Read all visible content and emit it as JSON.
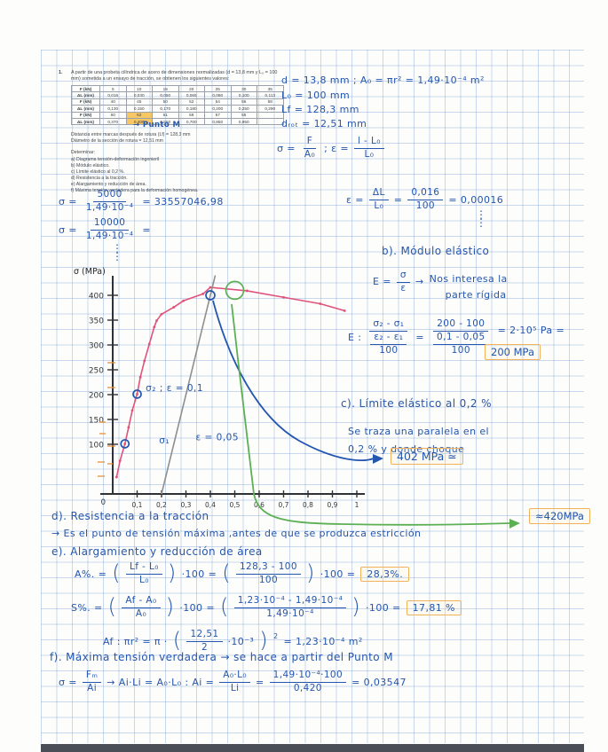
{
  "colors": {
    "ink_blue": "#2456ae",
    "curve_red": "#e0527a",
    "curve_green": "#5cb054",
    "offset_grey": "#8f8f8f",
    "highlight_orange": "#f2b25c",
    "table_highlight": "#f7c766"
  },
  "problem": {
    "number": "1.",
    "statement_l1": "A partir de una probeta cilíndrica de acero de dimensiones normalizadas (d = 13,8 mm y L₀ = 100",
    "statement_l2": "mm) sometida a un ensayo de tracción, se obtienen los siguientes valores:",
    "table": {
      "rows": [
        {
          "label": "F (kN)",
          "values": [
            "5",
            "10",
            "15",
            "20",
            "25",
            "30",
            "35"
          ]
        },
        {
          "label": "ΔL (mm)",
          "values": [
            "0,016",
            "0,030",
            "0,050",
            "0,065",
            "0,080",
            "0,100",
            "0,113"
          ]
        },
        {
          "label": "F (kN)",
          "values": [
            "40",
            "45",
            "50",
            "52",
            "54",
            "56",
            "58"
          ]
        },
        {
          "label": "ΔL (mm)",
          "values": [
            "0,130",
            "0,150",
            "0,170",
            "0,180",
            "0,200",
            "0,250",
            "0,290"
          ]
        },
        {
          "label": "F (kN)",
          "values": [
            "60",
            "62",
            "61",
            "59",
            "57",
            "55",
            ""
          ]
        },
        {
          "label": "ΔL (mm)",
          "values": [
            "0,370",
            "0,400",
            "0,550",
            "0,700",
            "0,850",
            "0,950",
            ""
          ]
        }
      ],
      "highlight_cells": [
        [
          4,
          1
        ],
        [
          5,
          1
        ]
      ],
      "highlight_note": "→ Punto  M"
    },
    "after_table_l1": "Distancia entre marcas después de rotura (Lf) = 128,3 mm",
    "after_table_l2": "Diámetro de la sección de rotura = 12,51 mm",
    "determine_title": "Determinar:",
    "determine_items": [
      "a)  Diagrama tensión-deformación ingenieril",
      "b)  Módulo elástico.",
      "c)  Límite elástico al 0,2 %.",
      "d)  Resistencia a la tracción.",
      "e)  Alargamiento y reducción de área.",
      "f)  Máxima tensión verdadera para la deformación homogénea."
    ]
  },
  "notes_top_right": {
    "line1": "d = 13,8 mm    ;   A₀ = πr² = 1,49·10⁻⁴ m²",
    "line2": "L₀ = 100 mm",
    "line3": "Lf = 128,3 mm",
    "line4": "dᵣₒₜ = 12,51 mm",
    "sigma_def": {
      "lhs": "σ =",
      "num": "F",
      "den": "A₀"
    },
    "eps_def": {
      "lhs": ";    ε =",
      "num": "l - L₀",
      "den": "L₀"
    }
  },
  "calcs": {
    "sigma1": {
      "lhs": "σ  =",
      "num": "5000",
      "den": "1,49·10⁻⁴",
      "rhs": "= 33557046,98"
    },
    "sigma2": {
      "lhs": "σ  =",
      "num": "10000",
      "den": "1,49·10⁻⁴",
      "rhs": "="
    },
    "dots": "⋮",
    "eps": {
      "lhs": "ε =",
      "f1n": "ΔL",
      "f1d": "L₀",
      "eq1": "=",
      "f2n": "0,016",
      "f2d": "100",
      "rhs": "= 0,00016"
    }
  },
  "section_b": {
    "title": "b). Módulo elástico",
    "e_def": {
      "lhs": "E =",
      "num": "σ",
      "den": "ε",
      "arrow": "→",
      "note1": "Nos interesa la",
      "note2": "parte rígida"
    },
    "e_calc": {
      "lhs": "E :",
      "f1n": "σ₂ - σ₁",
      "f1dn": "ε₂ - ε₁",
      "f1dd": "100",
      "eq1": "=",
      "f2n": "200 - 100",
      "f2dn": "0,1 - 0,05",
      "f2dd": "100",
      "rhs": "= 2·10⁵ Pa   =",
      "boxed": "200 MPa"
    }
  },
  "section_c": {
    "title": "c). Límite  elástico   al   0,2 %",
    "body1": "Se  traza  una  paralela  en  el",
    "body2": "0,2 %    y  donde  choque",
    "result": "402 MPa  ≃"
  },
  "section_d": {
    "title": "d). Resistencia   a   la   tracción",
    "result": "≈420MPa",
    "body": "→ Es  el  punto  de  tensión  máxima ,antes  de  que  se  produzca  estricción"
  },
  "section_e": {
    "title": "e). Alargamiento   y   reducción   de   área",
    "a_line": {
      "lhs": "A%. =",
      "f1n": "Lf - L₀",
      "f1d": "L₀",
      "m1": "·100 =",
      "f2n": "128,3 - 100",
      "f2d": "100",
      "m2": "·100 =",
      "boxed": "28,3%."
    },
    "s_line": {
      "lhs": "S%.  =",
      "f1n": "Af - A₀",
      "f1d": "A₀",
      "m1": "·100 =",
      "f2n": "1,23·10⁻⁴ - 1,49·10⁻⁴",
      "f2d": "1,49·10⁻⁴",
      "m2": "·100 =",
      "boxed": "17,81 %"
    },
    "af_line": {
      "lhs": "Af : πr²  =  π ·",
      "pn": "12,51",
      "pd": "2",
      "post": "·10⁻³",
      "sup": "2",
      "rhs": "= 1,23·10⁻⁴ m²"
    }
  },
  "section_f": {
    "title": "f). Máxima  tensión  verdadera   →   se  hace    a   partir  del   Punto M",
    "calc": {
      "lhs": "σ =",
      "f1n": "Fₘ",
      "f1d": "Ai",
      "mid": "→   Ai·Li = A₀·L₀   :   Ai =",
      "f2n": "A₀·L₀",
      "f2d": "Li",
      "eq": "=",
      "f3n": "1,49·10⁻⁴·100",
      "f3d": "0,420",
      "rhs": "= 0,03547"
    }
  },
  "chart_data": {
    "type": "line",
    "title": "",
    "ylabel": "σ (MPa)",
    "xlabel": "",
    "xlim": [
      0,
      1.05
    ],
    "ylim": [
      0,
      450
    ],
    "grid": true,
    "x_ticks": [
      0.1,
      0.2,
      0.3,
      0.4,
      0.5,
      0.6,
      0.7,
      0.8,
      0.9,
      1
    ],
    "x_tick_labels": [
      "0,1",
      "0,2",
      "0,3",
      "0,4",
      "0,5",
      "0,6",
      "0,7",
      "0,8",
      "0,9",
      "1"
    ],
    "y_ticks": [
      100,
      150,
      200,
      250,
      300,
      350,
      400
    ],
    "y_tick_labels": [
      "100",
      "150",
      "200",
      "250",
      "300",
      "350",
      "400"
    ],
    "origin_label": "0",
    "series": [
      {
        "name": "engineering-stress-strain-curve",
        "color": "#e0527a",
        "markers": true,
        "x": [
          0.016,
          0.03,
          0.05,
          0.065,
          0.08,
          0.1,
          0.113,
          0.13,
          0.15,
          0.17,
          0.18,
          0.2,
          0.25,
          0.29,
          0.37,
          0.4,
          0.55,
          0.7,
          0.85,
          0.95
        ],
        "y": [
          34,
          67,
          101,
          134,
          168,
          201,
          235,
          268,
          302,
          336,
          349,
          362,
          376,
          389,
          403,
          416,
          409,
          396,
          383,
          369
        ]
      },
      {
        "name": "offset-0.2pct-parallel-line",
        "color": "#8f8f8f",
        "markers": false,
        "x": [
          0.2,
          0.42
        ],
        "y": [
          0,
          440
        ]
      }
    ],
    "marked_points": [
      {
        "x": 0.05,
        "y": 101,
        "color": "#2456ae",
        "r": 4.5,
        "name": "sigma1-point"
      },
      {
        "x": 0.1,
        "y": 201,
        "color": "#2456ae",
        "r": 4.5,
        "name": "sigma2-point"
      },
      {
        "x": 0.4,
        "y": 400,
        "color": "#2456ae",
        "r": 5,
        "name": "offset-intersection-point"
      },
      {
        "x": 0.5,
        "y": 410,
        "color": "#5cb054",
        "r": 10,
        "name": "max-load-point-M"
      }
    ],
    "annotations": [
      {
        "text": "σ₂ ; ε = 0,1",
        "x": 0.135,
        "y": 207,
        "color": "#2456ae"
      },
      {
        "text": "σ₁",
        "x": 0.19,
        "y": 102,
        "color": "#2456ae"
      },
      {
        "text": "ε = 0,05",
        "x": 0.34,
        "y": 108,
        "color": "#2456ae"
      }
    ],
    "pointers": [
      {
        "name": "pointer-curve-to-402-result",
        "color": "#2456ae",
        "points_to": "402 MPa ≃"
      },
      {
        "name": "pointer-curve-to-420-result",
        "color": "#5cb054",
        "points_to": "≈420MPa"
      }
    ]
  }
}
